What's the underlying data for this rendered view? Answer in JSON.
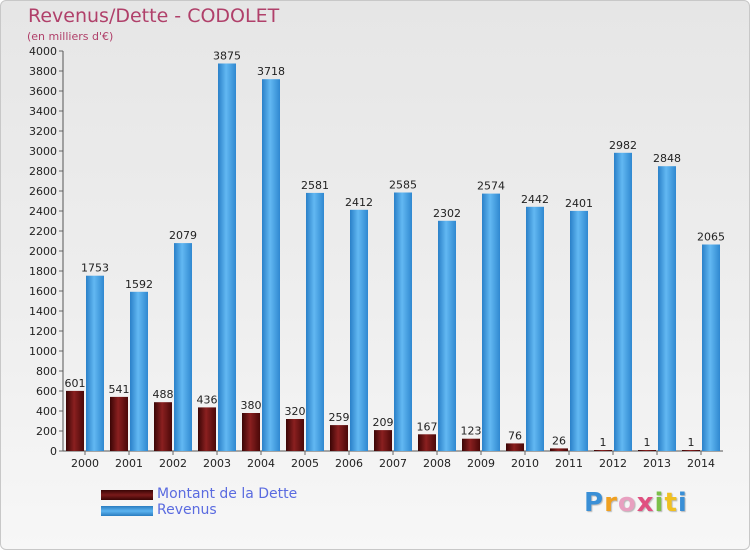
{
  "header": {
    "title": "Revenus/Dette - CODOLET",
    "subtitle": "(en milliers d'€)"
  },
  "logo": {
    "letters": [
      "P",
      "r",
      "o",
      "x",
      "i",
      "t",
      "i"
    ]
  },
  "colors": {
    "dette": "#6b1010",
    "revenus": "#3a96dc",
    "text": "#222222",
    "accent": "#b0406a"
  },
  "chart_data": {
    "type": "bar",
    "categories": [
      "2000",
      "2001",
      "2002",
      "2003",
      "2004",
      "2005",
      "2006",
      "2007",
      "2008",
      "2009",
      "2010",
      "2011",
      "2012",
      "2013",
      "2014"
    ],
    "series": [
      {
        "name": "Montant de la Dette",
        "values": [
          601,
          541,
          488,
          436,
          380,
          320,
          259,
          209,
          167,
          123,
          76,
          26,
          1,
          1,
          1
        ]
      },
      {
        "name": "Revenus",
        "values": [
          1753,
          1592,
          2079,
          3875,
          3718,
          2581,
          2412,
          2585,
          2302,
          2574,
          2442,
          2401,
          2982,
          2848,
          2065
        ]
      }
    ],
    "title": "Revenus/Dette - CODOLET",
    "subtitle": "(en milliers d'€)",
    "xlabel": "",
    "ylabel": "",
    "ylim": [
      0,
      4000
    ],
    "ytick_step": 200,
    "grid": false,
    "legend": "bottom-left"
  }
}
